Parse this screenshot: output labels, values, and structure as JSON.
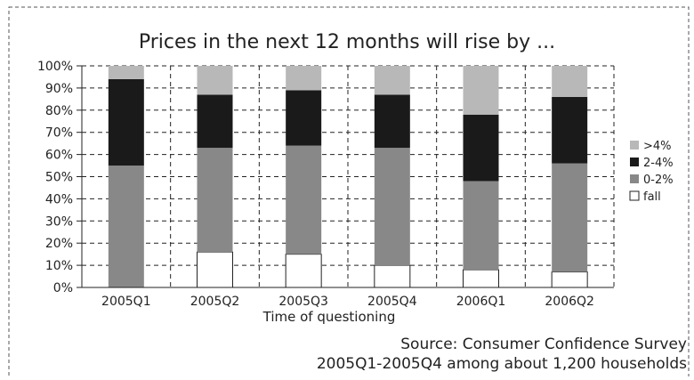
{
  "chart_data": {
    "type": "bar",
    "stacked": true,
    "percent": true,
    "title": "Prices in the next 12 months will rise by ...",
    "xlabel": "Time of questioning",
    "ylabel": "",
    "ylim": [
      0,
      100
    ],
    "y_ticks": [
      "0%",
      "10%",
      "20%",
      "30%",
      "40%",
      "50%",
      "60%",
      "70%",
      "80%",
      "90%",
      "100%"
    ],
    "grid": true,
    "legend_position": "right",
    "categories": [
      "2005Q1",
      "2005Q2",
      "2005Q3",
      "2005Q4",
      "2006Q1",
      "2006Q2"
    ],
    "series": [
      {
        "name": "fall",
        "color": "#ffffff",
        "values": [
          0,
          16,
          15,
          10,
          8,
          7
        ]
      },
      {
        "name": "0-2%",
        "color": "#888888",
        "values": [
          55,
          47,
          49,
          53,
          40,
          49
        ]
      },
      {
        "name": "2-4%",
        "color": "#1a1a1a",
        "values": [
          39,
          24,
          25,
          24,
          30,
          30
        ]
      },
      {
        "name": ">4%",
        "color": "#b8b8b8",
        "values": [
          6,
          13,
          11,
          13,
          22,
          14
        ]
      }
    ],
    "legend_order": [
      ">4%",
      "2-4%",
      "0-2%",
      "fall"
    ],
    "source_lines": [
      "Source: Consumer Confidence Survey",
      "2005Q1-2005Q4 among about 1,200 households"
    ]
  }
}
